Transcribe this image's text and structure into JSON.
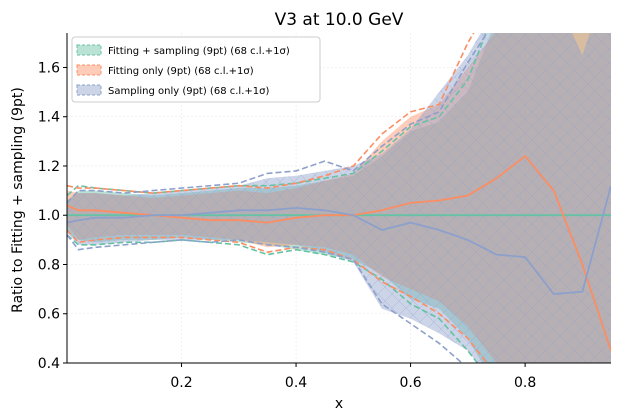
{
  "chart_data": {
    "type": "line",
    "title": "V3 at 10.0 GeV",
    "xlabel": "x",
    "ylabel": "Ratio to Fitting + sampling (9pt)",
    "xlim": [
      0.0,
      0.95
    ],
    "ylim": [
      0.4,
      1.74
    ],
    "xticks": [
      0.2,
      0.4,
      0.6,
      0.8
    ],
    "xtick_labels": [
      "0.2",
      "0.4",
      "0.6",
      "0.8"
    ],
    "yticks": [
      0.4,
      0.6,
      0.8,
      1.0,
      1.2,
      1.4,
      1.6
    ],
    "ytick_labels": [
      "0.4",
      "0.6",
      "0.8",
      "1.0",
      "1.2",
      "1.4",
      "1.6"
    ],
    "grid": true,
    "legend_position": "top-left",
    "x": [
      0.0,
      0.02,
      0.05,
      0.1,
      0.15,
      0.2,
      0.25,
      0.3,
      0.35,
      0.4,
      0.45,
      0.5,
      0.55,
      0.6,
      0.65,
      0.7,
      0.75,
      0.8,
      0.85,
      0.9,
      0.95
    ],
    "series": [
      {
        "name": "Fitting + sampling (9pt) (68 c.l.+1σ)",
        "color": "#66c2a5",
        "central": [
          1.0,
          1.0,
          1.0,
          1.0,
          1.0,
          1.0,
          1.0,
          1.0,
          1.0,
          1.0,
          1.0,
          1.0,
          1.0,
          1.0,
          1.0,
          1.0,
          1.0,
          1.0,
          1.0,
          1.0,
          1.0
        ],
        "upper": [
          1.06,
          1.1,
          1.1,
          1.09,
          1.08,
          1.09,
          1.1,
          1.11,
          1.11,
          1.12,
          1.14,
          1.16,
          1.24,
          1.34,
          1.38,
          1.5,
          1.8,
          2.0,
          2.0,
          2.0,
          2.0
        ],
        "lower": [
          0.93,
          0.9,
          0.89,
          0.9,
          0.9,
          0.91,
          0.9,
          0.89,
          0.88,
          0.86,
          0.84,
          0.82,
          0.76,
          0.66,
          0.62,
          0.5,
          0.3,
          0.2,
          0.2,
          0.2,
          0.2
        ],
        "upper_dashed": [
          1.08,
          1.12,
          1.11,
          1.1,
          1.09,
          1.1,
          1.11,
          1.12,
          1.12,
          1.13,
          1.15,
          1.17,
          1.26,
          1.36,
          1.4,
          1.55,
          1.85,
          2.0,
          2.0,
          2.0,
          2.0
        ],
        "lower_dashed": [
          0.92,
          0.88,
          0.88,
          0.89,
          0.89,
          0.9,
          0.89,
          0.88,
          0.84,
          0.86,
          0.84,
          0.81,
          0.74,
          0.64,
          0.58,
          0.45,
          0.3,
          0.2,
          0.2,
          0.2,
          0.2
        ]
      },
      {
        "name": "Fitting only (9pt) (68 c.l.+1σ)",
        "color": "#fc8d62",
        "central": [
          1.04,
          1.02,
          1.02,
          1.01,
          1.0,
          0.99,
          0.98,
          0.98,
          0.97,
          0.99,
          1.0,
          1.0,
          1.02,
          1.05,
          1.06,
          1.08,
          1.15,
          1.24,
          1.1,
          0.8,
          0.45
        ],
        "upper": [
          1.1,
          1.09,
          1.09,
          1.08,
          1.07,
          1.08,
          1.09,
          1.1,
          1.09,
          1.11,
          1.14,
          1.17,
          1.3,
          1.4,
          1.45,
          1.6,
          1.75,
          1.9,
          2.0,
          2.0,
          2.0
        ],
        "lower": [
          0.96,
          0.9,
          0.91,
          0.92,
          0.92,
          0.92,
          0.91,
          0.9,
          0.87,
          0.88,
          0.87,
          0.84,
          0.75,
          0.7,
          0.65,
          0.55,
          0.4,
          0.3,
          0.2,
          0.2,
          0.2
        ],
        "upper_dashed": [
          1.12,
          1.11,
          1.11,
          1.1,
          1.09,
          1.1,
          1.11,
          1.12,
          1.11,
          1.13,
          1.16,
          1.2,
          1.33,
          1.42,
          1.45,
          1.7,
          1.9,
          2.0,
          2.0,
          2.0,
          2.0
        ],
        "lower_dashed": [
          0.94,
          0.89,
          0.9,
          0.91,
          0.91,
          0.91,
          0.9,
          0.89,
          0.85,
          0.87,
          0.86,
          0.82,
          0.73,
          0.67,
          0.6,
          0.5,
          0.35,
          0.25,
          0.2,
          0.2,
          0.2
        ]
      },
      {
        "name": "Sampling only (9pt) (68 c.l.+1σ)",
        "color": "#8da0cb",
        "central": [
          0.97,
          0.98,
          0.99,
          0.99,
          1.0,
          1.0,
          1.01,
          1.02,
          1.02,
          1.03,
          1.02,
          1.0,
          0.94,
          0.97,
          0.94,
          0.9,
          0.84,
          0.83,
          0.68,
          0.69,
          1.12
        ],
        "upper": [
          1.06,
          1.09,
          1.09,
          1.08,
          1.09,
          1.1,
          1.11,
          1.12,
          1.15,
          1.16,
          1.18,
          1.2,
          1.25,
          1.35,
          1.5,
          1.65,
          1.85,
          2.0,
          1.9,
          1.65,
          2.0
        ],
        "lower": [
          0.93,
          0.88,
          0.88,
          0.89,
          0.9,
          0.9,
          0.9,
          0.9,
          0.89,
          0.88,
          0.85,
          0.81,
          0.62,
          0.58,
          0.52,
          0.45,
          0.3,
          0.2,
          0.2,
          0.2,
          0.2
        ],
        "upper_dashed": [
          1.05,
          1.1,
          1.1,
          1.09,
          1.1,
          1.11,
          1.12,
          1.13,
          1.17,
          1.18,
          1.22,
          1.18,
          1.28,
          1.37,
          1.42,
          1.62,
          1.8,
          2.0,
          2.0,
          2.0,
          2.0
        ],
        "lower_dashed": [
          0.92,
          0.86,
          0.87,
          0.88,
          0.89,
          0.9,
          0.89,
          0.9,
          0.88,
          0.87,
          0.85,
          0.82,
          0.64,
          0.56,
          0.48,
          0.38,
          0.25,
          0.2,
          0.2,
          0.2,
          0.2
        ]
      }
    ]
  }
}
